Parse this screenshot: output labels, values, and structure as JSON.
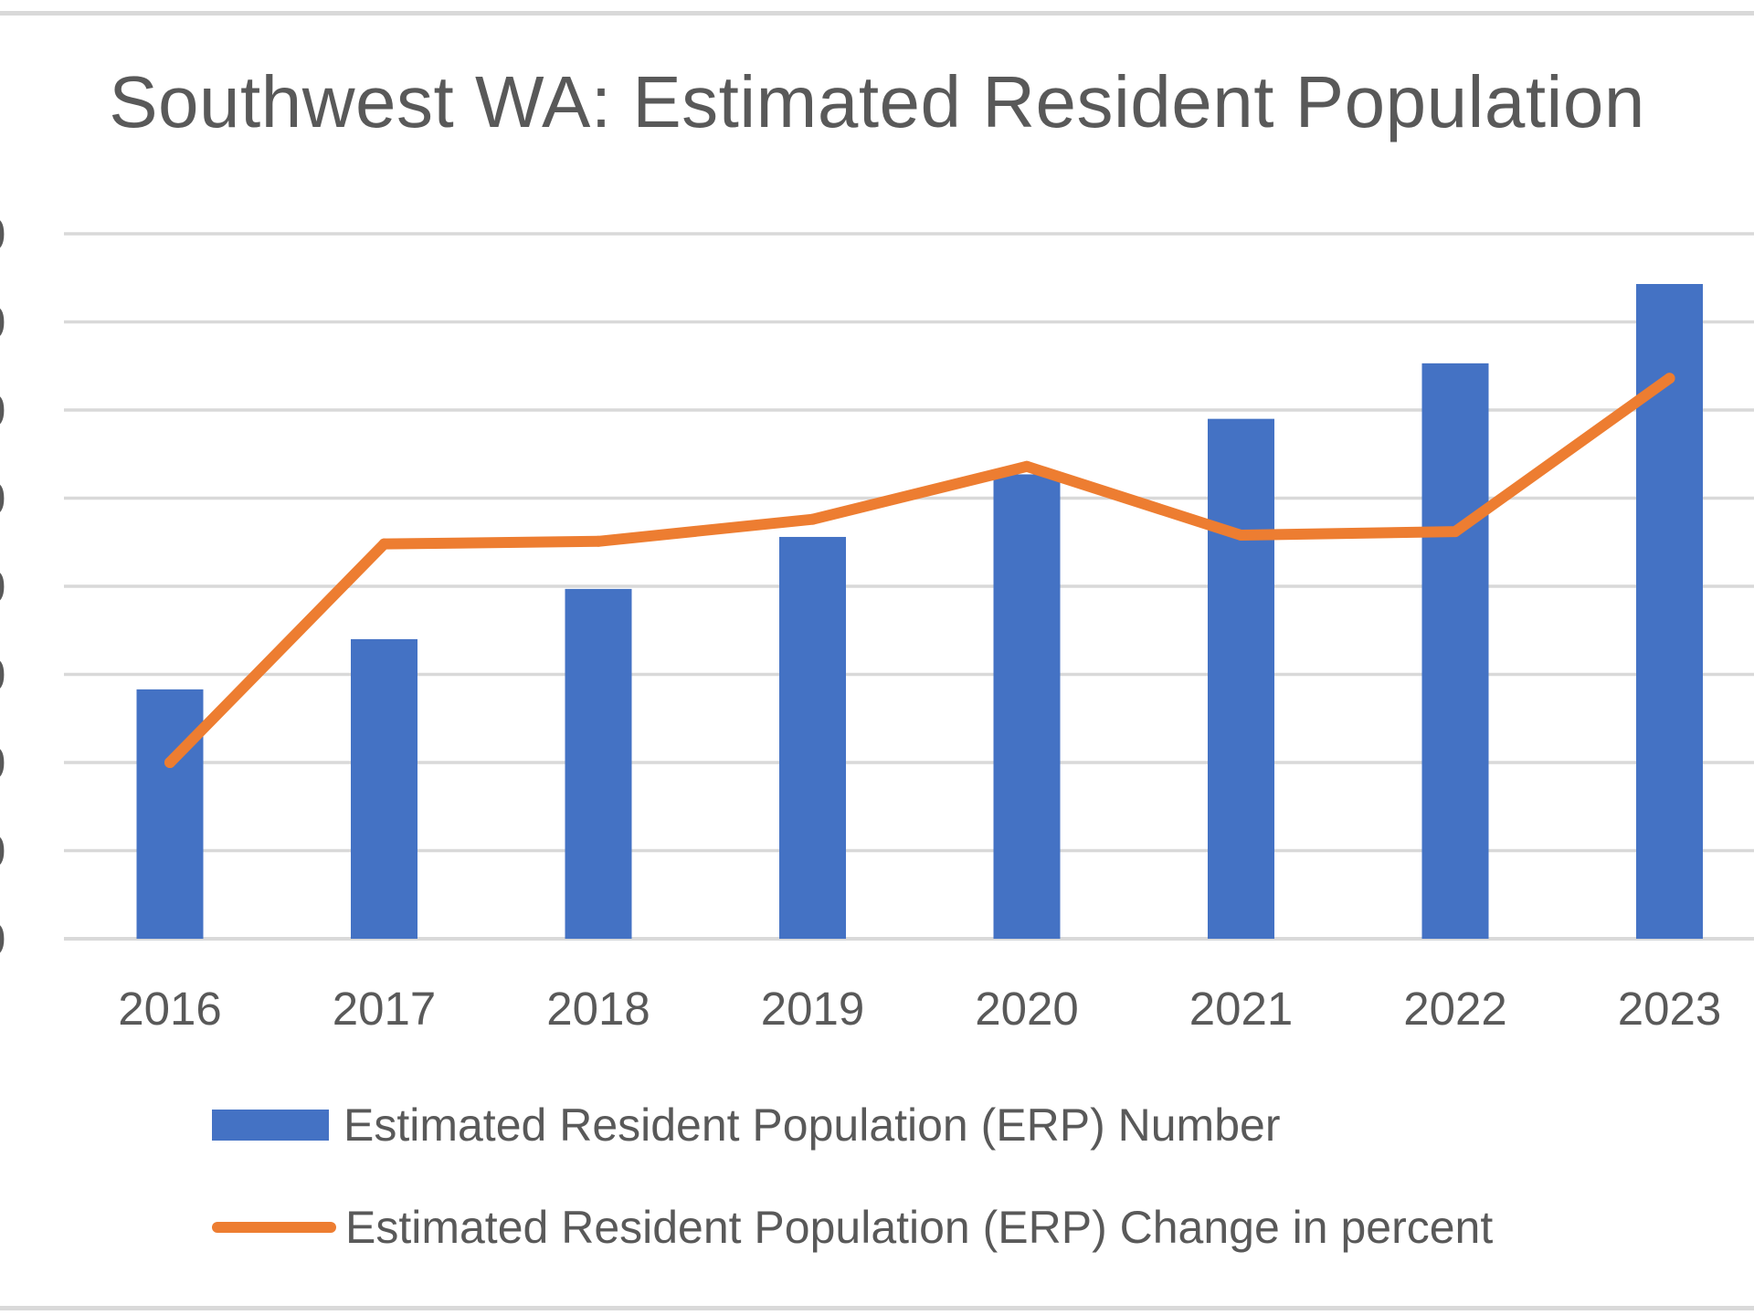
{
  "chart_data": {
    "type": "bar+line",
    "title": "Southwest WA: Estimated Resident Population",
    "categories": [
      "2016",
      "2017",
      "2018",
      "2019",
      "2020",
      "2021",
      "2022",
      "2023"
    ],
    "series": [
      {
        "name": "Estimated Resident Population (ERP) Number",
        "type": "bar",
        "color": "#4472c4",
        "values": [
          2.83,
          3.4,
          3.97,
          4.56,
          5.27,
          5.9,
          6.53,
          7.43
        ]
      },
      {
        "name": "Estimated Resident Population (ERP) Change in percent",
        "type": "line",
        "color": "#ed7d31",
        "values": [
          2.0,
          4.48,
          4.51,
          4.76,
          5.36,
          4.58,
          4.62,
          6.36
        ]
      }
    ],
    "ylim": [
      0,
      8
    ],
    "gridlines": [
      0,
      1,
      2,
      3,
      4,
      5,
      6,
      7,
      8
    ],
    "grid": true,
    "legend_position": "bottom",
    "xlabel": "",
    "ylabel": ""
  }
}
